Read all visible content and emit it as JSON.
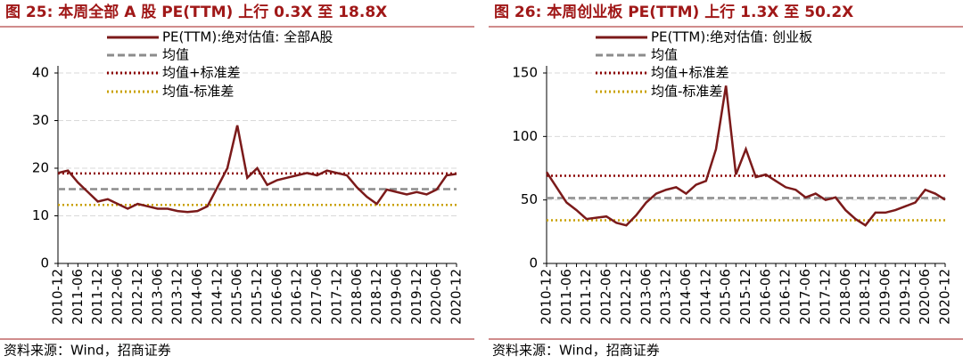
{
  "chart_data": [
    {
      "type": "line",
      "title": "图 25:  本周全部 A 股 PE(TTM)  上行 0.3X 至 18.8X",
      "source": "资料来源：Wind，招商证券",
      "x": [
        "2010-12",
        null,
        "2011-06",
        null,
        "2011-12",
        null,
        "2012-06",
        null,
        "2012-12",
        null,
        "2013-06",
        null,
        "2013-12",
        null,
        "2014-06",
        null,
        "2014-12",
        null,
        "2015-06",
        null,
        "2015-12",
        null,
        "2016-06",
        null,
        "2016-12",
        null,
        "2017-06",
        null,
        "2017-12",
        null,
        "2018-06",
        null,
        "2018-12",
        null,
        "2019-06",
        null,
        "2019-12",
        null,
        "2020-06",
        null,
        "2020-12"
      ],
      "series": [
        {
          "name": "PE(TTM):绝对估值: 全部A股",
          "color": "#7b1a1a",
          "values": [
            19,
            19.5,
            17,
            15,
            13,
            13.5,
            12.5,
            11.5,
            12.5,
            12,
            11.5,
            11.5,
            11,
            10.8,
            11,
            12,
            16,
            20,
            29,
            18,
            20,
            16.5,
            17.5,
            18,
            18.5,
            19,
            18.5,
            19.5,
            19,
            18.5,
            16,
            14,
            12.5,
            15.5,
            15,
            14.5,
            15,
            14.5,
            15.5,
            18.5,
            18.8
          ]
        }
      ],
      "reference_lines": [
        {
          "name": "均值",
          "color": "#8c8c8c",
          "style": "dashed",
          "value": 15.6
        },
        {
          "name": "均值+标准差",
          "color": "#8b0000",
          "style": "dotted",
          "value": 18.9
        },
        {
          "name": "均值-标准差",
          "color": "#c9a100",
          "style": "dotted",
          "value": 12.3
        }
      ],
      "ylim": [
        0,
        40
      ],
      "yticks": [
        0,
        10,
        20,
        30,
        40
      ],
      "grid": true
    },
    {
      "type": "line",
      "title": "图 26:  本周创业板 PE(TTM)  上行 1.3X 至 50.2X",
      "source": "资料来源：Wind，招商证券",
      "x": [
        "2010-12",
        null,
        "2011-06",
        null,
        "2011-12",
        null,
        "2012-06",
        null,
        "2012-12",
        null,
        "2013-06",
        null,
        "2013-12",
        null,
        "2014-06",
        null,
        "2014-12",
        null,
        "2015-06",
        null,
        "2015-12",
        null,
        "2016-06",
        null,
        "2016-12",
        null,
        "2017-06",
        null,
        "2017-12",
        null,
        "2018-06",
        null,
        "2018-12",
        null,
        "2019-06",
        null,
        "2019-12",
        null,
        "2020-06",
        null,
        "2020-12"
      ],
      "series": [
        {
          "name": "PE(TTM):绝对估值: 创业板",
          "color": "#7b1a1a",
          "values": [
            72,
            60,
            48,
            42,
            35,
            36,
            37,
            32,
            30,
            38,
            48,
            55,
            58,
            60,
            55,
            62,
            65,
            90,
            140,
            70,
            90,
            68,
            70,
            65,
            60,
            58,
            52,
            55,
            50,
            52,
            42,
            35,
            30,
            40,
            40,
            42,
            45,
            48,
            58,
            55,
            50.2
          ]
        }
      ],
      "reference_lines": [
        {
          "name": "均值",
          "color": "#8c8c8c",
          "style": "dashed",
          "value": 51.5
        },
        {
          "name": "均值+标准差",
          "color": "#8b0000",
          "style": "dotted",
          "value": 69
        },
        {
          "name": "均值-标准差",
          "color": "#c9a100",
          "style": "dotted",
          "value": 34
        }
      ],
      "ylim": [
        0,
        150
      ],
      "yticks": [
        0,
        50,
        100,
        150
      ],
      "grid": true
    }
  ]
}
